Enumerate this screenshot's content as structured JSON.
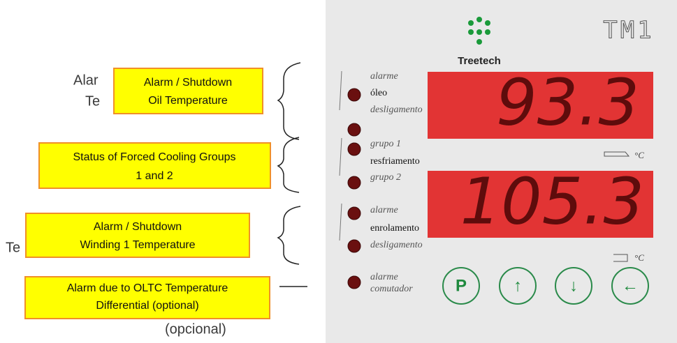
{
  "background_text": [
    "Alar",
    "Te",
    "Te",
    "(opcional)"
  ],
  "callouts": [
    {
      "lines": [
        "Alarm / Shutdown",
        "Oil Temperature"
      ]
    },
    {
      "lines": [
        "Status of Forced Cooling Groups",
        "1 and 2"
      ]
    },
    {
      "lines": [
        "Alarm / Shutdown",
        "Winding 1 Temperature"
      ]
    },
    {
      "lines": [
        "Alarm due to OLTC Temperature",
        "Differential (optional)"
      ]
    }
  ],
  "panel": {
    "brand": "Treetech",
    "model": "TM1",
    "displays": [
      "93.3",
      "105.3"
    ],
    "units": [
      "°C",
      "°C"
    ],
    "labels": [
      "alarme",
      "óleo",
      "desligamento",
      "grupo 1",
      "resfriamento",
      "grupo 2",
      "alarme",
      "enrolamento",
      "desligamento",
      "alarme",
      "comutador"
    ],
    "buttons": [
      "P",
      "↑",
      "↓",
      "←"
    ]
  }
}
